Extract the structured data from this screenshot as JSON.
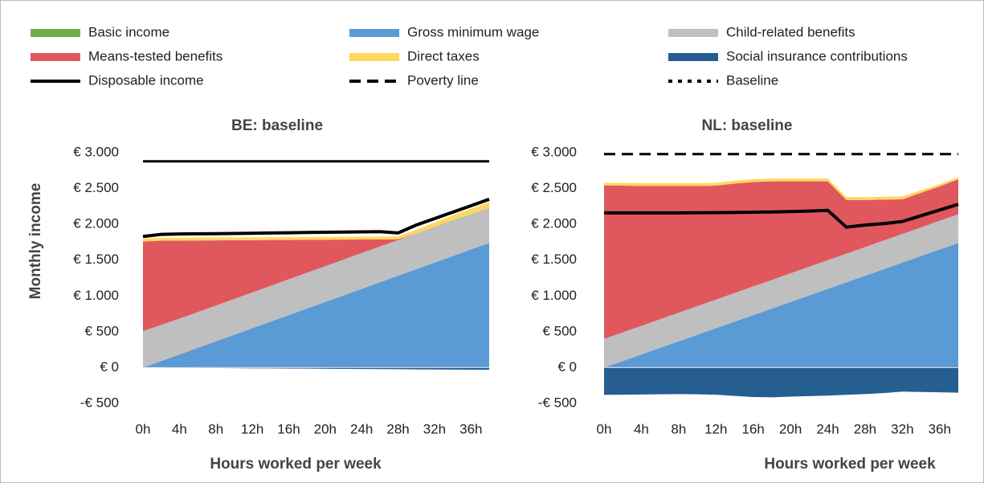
{
  "legend": [
    {
      "name": "Basic income",
      "color": "#70ad47",
      "style": "area"
    },
    {
      "name": "Gross minimum wage",
      "color": "#5b9bd5",
      "style": "area"
    },
    {
      "name": "Child-related benefits",
      "color": "#bfbfbf",
      "style": "area"
    },
    {
      "name": "Means-tested benefits",
      "color": "#e0585e",
      "style": "area"
    },
    {
      "name": "Direct taxes",
      "color": "#ffd75e",
      "style": "area"
    },
    {
      "name": "Social insurance contributions",
      "color": "#255e91",
      "style": "area"
    },
    {
      "name": "Disposable income",
      "color": "#000000",
      "style": "solid"
    },
    {
      "name": "Poverty line",
      "color": "#000000",
      "style": "dashed"
    },
    {
      "name": "Baseline",
      "color": "#000000",
      "style": "dotted"
    }
  ],
  "chart_data": [
    {
      "type": "area",
      "title": "BE: baseline",
      "ylabel": "Monthly income",
      "xlabel": "Hours worked per week",
      "x": [
        0,
        2,
        4,
        6,
        8,
        10,
        12,
        14,
        16,
        18,
        20,
        22,
        24,
        26,
        28,
        30,
        32,
        34,
        36,
        38
      ],
      "xlim": [
        0,
        38
      ],
      "xticks": [
        {
          "value": 0,
          "label": "0h"
        },
        {
          "value": 4,
          "label": "4h"
        },
        {
          "value": 8,
          "label": "8h"
        },
        {
          "value": 12,
          "label": "12h"
        },
        {
          "value": 16,
          "label": "16h"
        },
        {
          "value": 20,
          "label": "20h"
        },
        {
          "value": 24,
          "label": "24h"
        },
        {
          "value": 28,
          "label": "28h"
        },
        {
          "value": 32,
          "label": "32h"
        },
        {
          "value": 36,
          "label": "36h"
        }
      ],
      "ylim": [
        -500,
        3000
      ],
      "yticks": [
        {
          "value": -500,
          "label": "-€ 500"
        },
        {
          "value": 0,
          "label": "€ 0"
        },
        {
          "value": 500,
          "label": "€ 500"
        },
        {
          "value": 1000,
          "label": "€ 1.000"
        },
        {
          "value": 1500,
          "label": "€ 1.500"
        },
        {
          "value": 2000,
          "label": "€ 2.000"
        },
        {
          "value": 2500,
          "label": "€ 2.500"
        },
        {
          "value": 3000,
          "label": "€ 3.000"
        }
      ],
      "series": [
        {
          "name": "Gross minimum wage",
          "kind": "area",
          "color": "#5b9bd5",
          "values": [
            0,
            92,
            183,
            275,
            366,
            458,
            550,
            641,
            733,
            824,
            916,
            1008,
            1099,
            1191,
            1282,
            1374,
            1466,
            1557,
            1649,
            1740
          ]
        },
        {
          "name": "Child-related benefits",
          "kind": "area",
          "color": "#bfbfbf",
          "values": [
            510,
            505,
            500,
            500,
            500,
            500,
            500,
            500,
            500,
            500,
            500,
            500,
            500,
            500,
            500,
            500,
            500,
            500,
            495,
            490
          ]
        },
        {
          "name": "Means-tested benefits",
          "kind": "area",
          "color": "#e0585e",
          "values": [
            1250,
            1175,
            1090,
            1000,
            910,
            820,
            729,
            640,
            549,
            460,
            369,
            279,
            189,
            98,
            10,
            0,
            0,
            0,
            0,
            0
          ]
        },
        {
          "name": "Direct taxes",
          "kind": "area",
          "color": "#ffd75e",
          "values": [
            40,
            40,
            40,
            40,
            40,
            40,
            40,
            40,
            40,
            40,
            40,
            40,
            40,
            40,
            40,
            50,
            60,
            70,
            75,
            80
          ]
        },
        {
          "name": "Social insurance contributions",
          "kind": "area",
          "color": "#255e91",
          "values": [
            0,
            -2,
            -3,
            -5,
            -6,
            -8,
            -10,
            -11,
            -13,
            -14,
            -16,
            -18,
            -19,
            -21,
            -22,
            -24,
            -26,
            -27,
            -29,
            -30
          ]
        },
        {
          "name": "Disposable income",
          "kind": "line",
          "color": "#000000",
          "dash": "solid",
          "width": 4,
          "values": [
            1830,
            1860,
            1865,
            1868,
            1870,
            1873,
            1876,
            1880,
            1883,
            1886,
            1889,
            1892,
            1895,
            1898,
            1880,
            1990,
            2080,
            2170,
            2260,
            2350
          ]
        },
        {
          "name": "Poverty line",
          "kind": "line",
          "color": "#000000",
          "dash": "solid",
          "width": 3,
          "values": [
            2880,
            2880,
            2880,
            2880,
            2880,
            2880,
            2880,
            2880,
            2880,
            2880,
            2880,
            2880,
            2880,
            2880,
            2880,
            2880,
            2880,
            2880,
            2880,
            2880
          ]
        }
      ]
    },
    {
      "type": "area",
      "title": "NL: baseline",
      "xlabel": "Hours worked per week",
      "x": [
        0,
        2,
        4,
        6,
        8,
        10,
        12,
        14,
        16,
        18,
        20,
        22,
        24,
        26,
        28,
        30,
        32,
        34,
        36,
        38
      ],
      "xlim": [
        0,
        38
      ],
      "xticks": [
        {
          "value": 0,
          "label": "0h"
        },
        {
          "value": 4,
          "label": "4h"
        },
        {
          "value": 8,
          "label": "8h"
        },
        {
          "value": 12,
          "label": "12h"
        },
        {
          "value": 16,
          "label": "16h"
        },
        {
          "value": 20,
          "label": "20h"
        },
        {
          "value": 24,
          "label": "24h"
        },
        {
          "value": 28,
          "label": "28h"
        },
        {
          "value": 32,
          "label": "32h"
        },
        {
          "value": 36,
          "label": "36h"
        }
      ],
      "ylim": [
        -500,
        3000
      ],
      "yticks": [
        {
          "value": -500,
          "label": "-€ 500"
        },
        {
          "value": 0,
          "label": "€ 0"
        },
        {
          "value": 500,
          "label": "€ 500"
        },
        {
          "value": 1000,
          "label": "€ 1.000"
        },
        {
          "value": 1500,
          "label": "€ 1.500"
        },
        {
          "value": 2000,
          "label": "€ 2.000"
        },
        {
          "value": 2500,
          "label": "€ 2.500"
        },
        {
          "value": 3000,
          "label": "€ 3.000"
        }
      ],
      "series": [
        {
          "name": "Gross minimum wage",
          "kind": "area",
          "color": "#5b9bd5",
          "values": [
            0,
            92,
            183,
            275,
            366,
            458,
            550,
            641,
            733,
            824,
            916,
            1008,
            1099,
            1191,
            1282,
            1374,
            1466,
            1557,
            1649,
            1740
          ]
        },
        {
          "name": "Child-related benefits",
          "kind": "area",
          "color": "#bfbfbf",
          "values": [
            400,
            400,
            400,
            400,
            400,
            400,
            400,
            400,
            400,
            400,
            400,
            400,
            400,
            400,
            400,
            400,
            400,
            400,
            400,
            400
          ]
        },
        {
          "name": "Means-tested benefits",
          "kind": "area",
          "color": "#e0585e",
          "values": [
            2140,
            2048,
            1952,
            1860,
            1769,
            1677,
            1590,
            1529,
            1457,
            1376,
            1284,
            1192,
            1101,
            749,
            658,
            571,
            484,
            483,
            481,
            490
          ]
        },
        {
          "name": "Direct taxes",
          "kind": "area",
          "color": "#ffd75e",
          "values": [
            40,
            40,
            40,
            40,
            40,
            40,
            40,
            40,
            40,
            40,
            40,
            40,
            40,
            40,
            40,
            40,
            40,
            35,
            30,
            30
          ]
        },
        {
          "name": "Social insurance contributions",
          "kind": "area",
          "color": "#255e91",
          "values": [
            -380,
            -378,
            -375,
            -373,
            -370,
            -372,
            -378,
            -395,
            -410,
            -415,
            -405,
            -398,
            -390,
            -380,
            -370,
            -355,
            -335,
            -340,
            -345,
            -350
          ]
        },
        {
          "name": "Disposable income",
          "kind": "line",
          "color": "#000000",
          "dash": "solid",
          "width": 4,
          "values": [
            2160,
            2160,
            2160,
            2160,
            2160,
            2162,
            2163,
            2166,
            2170,
            2172,
            2178,
            2185,
            2195,
            1960,
            1990,
            2010,
            2040,
            2120,
            2200,
            2280
          ]
        },
        {
          "name": "Poverty line",
          "kind": "line",
          "color": "#000000",
          "dash": "dashed",
          "width": 3,
          "values": [
            2980,
            2980,
            2980,
            2980,
            2980,
            2980,
            2980,
            2980,
            2980,
            2980,
            2980,
            2980,
            2980,
            2980,
            2980,
            2980,
            2980,
            2980,
            2980,
            2980
          ]
        }
      ]
    }
  ]
}
